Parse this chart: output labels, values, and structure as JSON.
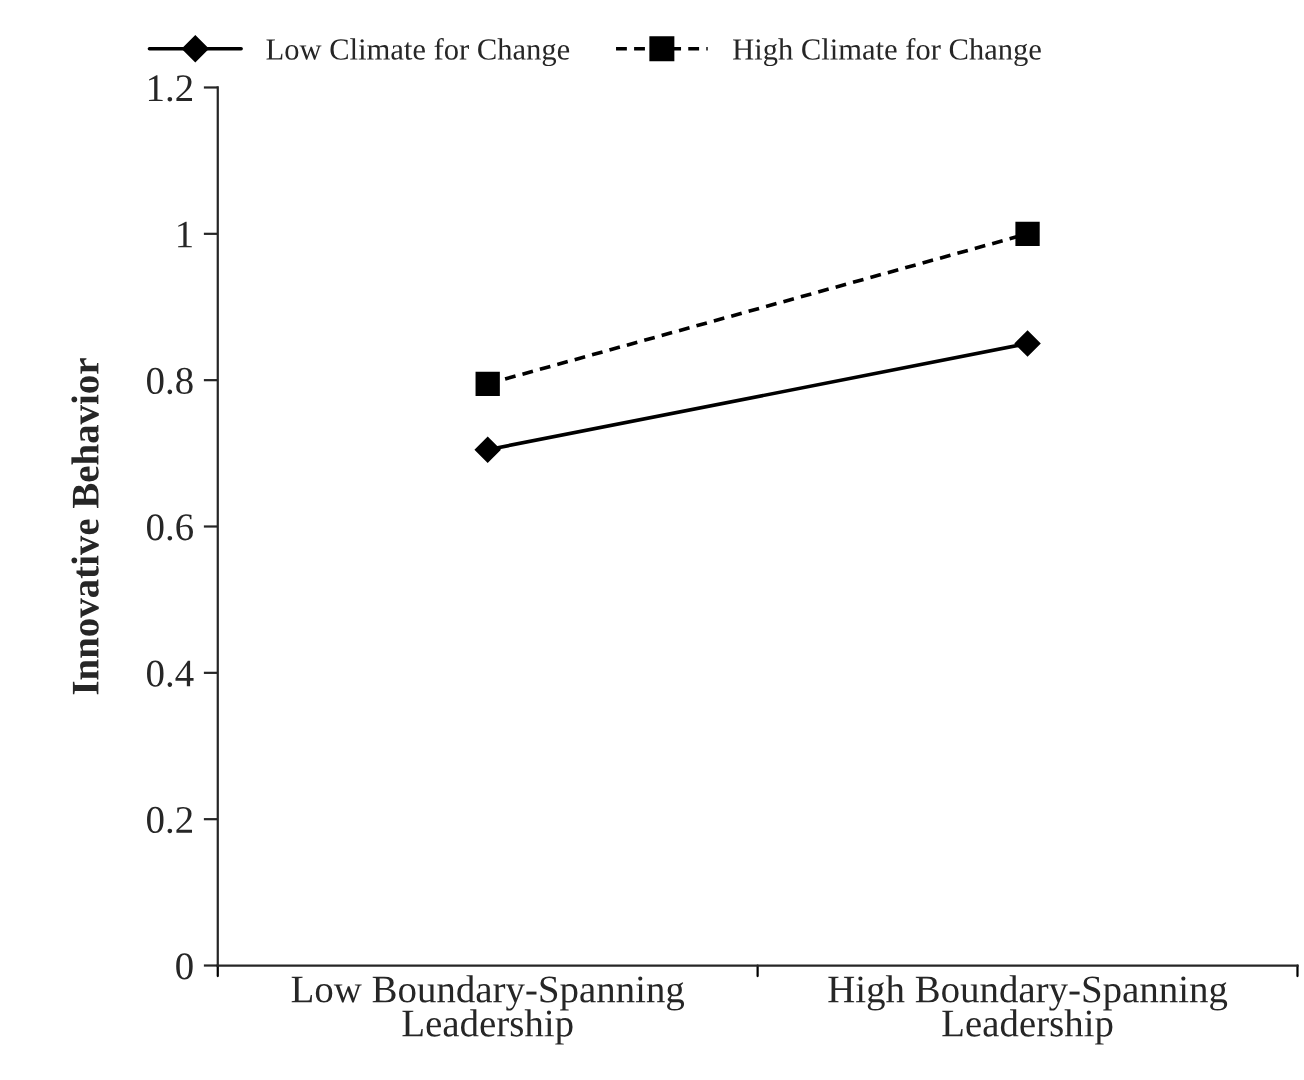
{
  "chart_data": {
    "type": "line",
    "ylabel": "Innovative Behavior",
    "categories": [
      "Low Boundary-Spanning Leadership",
      "High Boundary-Spanning Leadership"
    ],
    "series": [
      {
        "name": "Low Climate for Change",
        "color": "#000000",
        "values": [
          0.705,
          0.85
        ],
        "marker": "diamond",
        "line_style": "solid"
      },
      {
        "name": "High Climate for Change",
        "color": "#000000",
        "values": [
          0.795,
          1.0
        ],
        "marker": "square",
        "line_style": "dashed"
      }
    ],
    "ylim": [
      0,
      1.2
    ],
    "yticks": [
      0,
      0.2,
      0.4,
      0.6,
      0.8,
      1,
      1.2
    ],
    "grid": false,
    "legend": "top"
  }
}
